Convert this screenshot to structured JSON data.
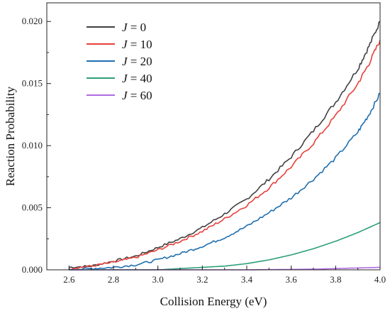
{
  "chart_data": {
    "type": "line",
    "xlabel": "Collision Energy (eV)",
    "ylabel": "Reaction Probability",
    "xlim": [
      2.5,
      4.0
    ],
    "ylim": [
      0.0,
      0.0215
    ],
    "x_ticks": [
      "2.6",
      "2.8",
      "3.0",
      "3.2",
      "3.4",
      "3.6",
      "3.8",
      "4.0"
    ],
    "y_ticks": [
      "0.000",
      "0.005",
      "0.010",
      "0.015",
      "0.020"
    ],
    "legend_position": "top-left",
    "grid": false,
    "series": [
      {
        "name": "J = 0",
        "legend_var": "J",
        "legend_value": "= 0",
        "color": "#404040",
        "x": [
          2.6,
          2.7,
          2.8,
          2.9,
          3.0,
          3.1,
          3.2,
          3.3,
          3.4,
          3.5,
          3.6,
          3.7,
          3.8,
          3.9,
          3.95,
          4.0
        ],
        "y": [
          0.0002,
          0.0003,
          0.0007,
          0.0011,
          0.0018,
          0.0025,
          0.0034,
          0.0045,
          0.0057,
          0.0073,
          0.0091,
          0.0112,
          0.0135,
          0.0162,
          0.018,
          0.02
        ]
      },
      {
        "name": "J = 10",
        "legend_var": "J",
        "legend_value": "= 10",
        "color": "#e8403a",
        "x": [
          2.6,
          2.7,
          2.8,
          2.9,
          3.0,
          3.1,
          3.2,
          3.3,
          3.4,
          3.5,
          3.6,
          3.7,
          3.8,
          3.9,
          3.95,
          4.0
        ],
        "y": [
          0.0001,
          0.0003,
          0.0006,
          0.001,
          0.0016,
          0.0023,
          0.0031,
          0.0041,
          0.0052,
          0.0066,
          0.0083,
          0.0102,
          0.0124,
          0.015,
          0.0166,
          0.0185
        ]
      },
      {
        "name": "J = 20",
        "legend_var": "J",
        "legend_value": "= 20",
        "color": "#1f6fb0",
        "x": [
          2.6,
          2.7,
          2.8,
          2.9,
          3.0,
          3.1,
          3.2,
          3.3,
          3.4,
          3.5,
          3.6,
          3.7,
          3.8,
          3.9,
          3.95,
          4.0
        ],
        "y": [
          0.0,
          0.0001,
          0.0002,
          0.0004,
          0.0008,
          0.0013,
          0.0019,
          0.0026,
          0.0035,
          0.0046,
          0.0058,
          0.0073,
          0.009,
          0.0111,
          0.0125,
          0.0142
        ]
      },
      {
        "name": "J = 40",
        "legend_var": "J",
        "legend_value": "= 40",
        "color": "#2e9e7a",
        "x": [
          2.6,
          2.8,
          3.0,
          3.1,
          3.2,
          3.3,
          3.4,
          3.5,
          3.6,
          3.7,
          3.8,
          3.9,
          4.0
        ],
        "y": [
          0.0,
          0.0,
          0.0,
          0.0001,
          0.0002,
          0.0003,
          0.0005,
          0.0008,
          0.0012,
          0.0017,
          0.0023,
          0.003,
          0.0038
        ]
      },
      {
        "name": "J = 60",
        "legend_var": "J",
        "legend_value": "= 60",
        "color": "#b06be0",
        "x": [
          2.6,
          3.0,
          3.4,
          3.7,
          3.8,
          3.9,
          4.0
        ],
        "y": [
          0.0,
          0.0,
          0.0,
          5e-05,
          0.0001,
          0.00015,
          0.0002
        ]
      }
    ]
  }
}
